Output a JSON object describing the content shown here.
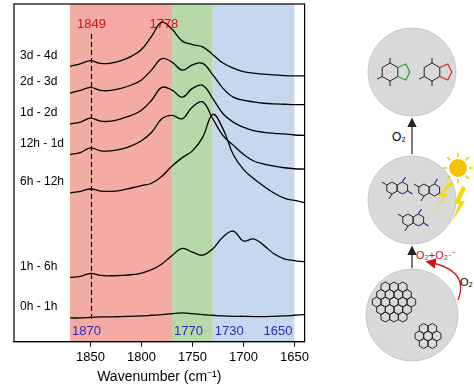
{
  "chart_data": {
    "type": "line",
    "x": [
      1870,
      1860,
      1850,
      1840,
      1830,
      1820,
      1810,
      1800,
      1790,
      1780,
      1770,
      1760,
      1750,
      1740,
      1730,
      1720,
      1710,
      1700,
      1690,
      1680,
      1670,
      1660,
      1650,
      1640
    ],
    "series": [
      {
        "name": "0h - 1h",
        "color": "#000000",
        "values": [
          7,
          7,
          7.2,
          7.3,
          7.3,
          7.4,
          7.5,
          7.6,
          7.8,
          8,
          8.3,
          8.5,
          8.3,
          8,
          7.8,
          7.6,
          7.5,
          7.5,
          7.4,
          7.4,
          7.5,
          7.6,
          7.8,
          8
        ]
      },
      {
        "name": "1h - 6h",
        "color": "#000000",
        "values": [
          19.0,
          19.3,
          20.2,
          19.6,
          19.5,
          19.6,
          19.8,
          20.3,
          21.3,
          23.0,
          25.5,
          27.6,
          26.5,
          25.6,
          27.5,
          31.0,
          32.7,
          29.8,
          30.4,
          28.5,
          26.0,
          24.5,
          24.0,
          23.6
        ]
      },
      {
        "name": "6h - 12h",
        "color": "#000000",
        "values": [
          44.0,
          44.5,
          45.2,
          44.6,
          44.5,
          44.8,
          45.5,
          46.2,
          46.9,
          49.0,
          52.0,
          54.5,
          56.5,
          60.5,
          67.3,
          63.0,
          55.4,
          51.0,
          48.3,
          46.0,
          44.0,
          42.5,
          41.8,
          41.2
        ]
      },
      {
        "name": "12h - 1d",
        "color": "#000000",
        "values": [
          55.4,
          56.0,
          57.4,
          56.5,
          56.5,
          57.0,
          58.0,
          59.5,
          62.0,
          66.0,
          67.0,
          66.0,
          69.5,
          71.0,
          66.0,
          61.0,
          58.2,
          55.5,
          53.5,
          52.6,
          52.0,
          51.5,
          51.2,
          51.1
        ]
      },
      {
        "name": "1d - 2d",
        "color": "#000000",
        "values": [
          64.5,
          65.0,
          66.2,
          65.3,
          65.3,
          66.0,
          67.0,
          68.5,
          71.5,
          75.3,
          74.5,
          72.4,
          75.0,
          75.9,
          72.0,
          67.5,
          65.0,
          63.5,
          62.5,
          62.0,
          61.7,
          61.5,
          61.2,
          61.1
        ]
      },
      {
        "name": "2d - 3d",
        "color": "#000000",
        "values": [
          73.6,
          74.4,
          75.3,
          74.4,
          74.4,
          75.0,
          76.0,
          77.5,
          80.5,
          83.8,
          82.8,
          80.4,
          82.0,
          82.4,
          79.0,
          75.0,
          72.4,
          71.5,
          71.0,
          70.6,
          70.4,
          70.3,
          70.2,
          70.2
        ]
      },
      {
        "name": "3d - 4d",
        "color": "#000000",
        "values": [
          81.5,
          82.3,
          83.2,
          82.4,
          82.5,
          83.2,
          84.5,
          86.5,
          90.5,
          94.6,
          92.5,
          89.0,
          88.0,
          87.3,
          85.0,
          82.5,
          81.0,
          80.0,
          79.5,
          79.2,
          79.0,
          78.8,
          78.7,
          78.7
        ]
      }
    ],
    "xlim": [
      1925,
      1640
    ],
    "xticks": [
      1850,
      1800,
      1750,
      1700,
      1650
    ],
    "ylim": [
      0,
      100
    ],
    "x_label": "Wavenumber (cm⁻¹)",
    "tick_labels": "x",
    "grid": false,
    "regions": [
      {
        "from": 1870,
        "to": 1770,
        "color": "#f3aba4"
      },
      {
        "from": 1770,
        "to": 1730,
        "color": "#b7d9aa"
      },
      {
        "from": 1730,
        "to": 1650,
        "color": "#c6d7ef"
      }
    ],
    "edge_labels": {
      "values": [
        1870,
        1770,
        1730,
        1650
      ],
      "color": "#2b2bb0"
    },
    "annotations": [
      {
        "x": 1849,
        "label": "1849",
        "color": "#d01515",
        "line_style": "dashed"
      },
      {
        "x": 1778,
        "label": "1778",
        "color": "#d01515"
      }
    ]
  },
  "scheme": {
    "top_arrow_label": "O₂",
    "bottom_labels": [
      "O₂+O₂·⁻",
      "O₂"
    ]
  }
}
